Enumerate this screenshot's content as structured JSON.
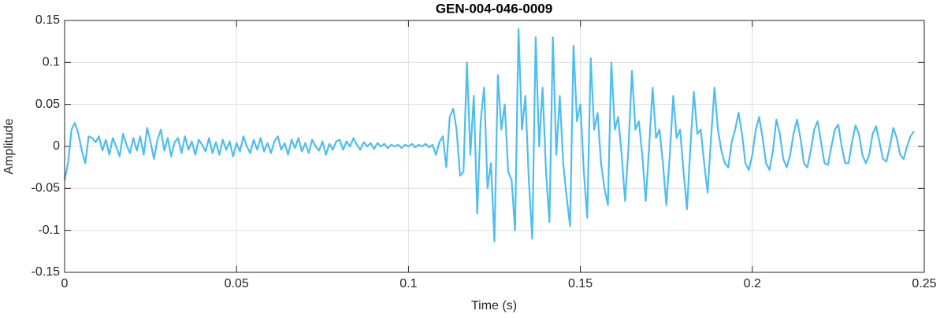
{
  "chart_data": {
    "type": "line",
    "title": "GEN-004-046-0009",
    "xlabel": "Time (s)",
    "ylabel": "Amplitude",
    "color": "#4dbeee",
    "grid": true,
    "xlim": [
      0,
      0.25
    ],
    "ylim": [
      -0.15,
      0.15
    ],
    "xticks": [
      0,
      0.05,
      0.1,
      0.15,
      0.2,
      0.25
    ],
    "yticks": [
      -0.15,
      -0.1,
      -0.05,
      0,
      0.05,
      0.1,
      0.15
    ],
    "x": [
      0,
      0.001,
      0.002,
      0.003,
      0.004,
      0.005,
      0.006,
      0.007,
      0.008,
      0.009,
      0.01,
      0.011,
      0.012,
      0.013,
      0.014,
      0.015,
      0.016,
      0.017,
      0.018,
      0.019,
      0.02,
      0.021,
      0.022,
      0.023,
      0.024,
      0.025,
      0.026,
      0.027,
      0.028,
      0.029,
      0.03,
      0.031,
      0.032,
      0.033,
      0.034,
      0.035,
      0.036,
      0.037,
      0.038,
      0.039,
      0.04,
      0.041,
      0.042,
      0.043,
      0.044,
      0.045,
      0.046,
      0.047,
      0.048,
      0.049,
      0.05,
      0.051,
      0.052,
      0.053,
      0.054,
      0.055,
      0.056,
      0.057,
      0.058,
      0.059,
      0.06,
      0.061,
      0.062,
      0.063,
      0.064,
      0.065,
      0.066,
      0.067,
      0.068,
      0.069,
      0.07,
      0.071,
      0.072,
      0.073,
      0.074,
      0.075,
      0.076,
      0.077,
      0.078,
      0.079,
      0.08,
      0.081,
      0.082,
      0.083,
      0.084,
      0.085,
      0.086,
      0.087,
      0.088,
      0.089,
      0.09,
      0.091,
      0.092,
      0.093,
      0.094,
      0.095,
      0.096,
      0.097,
      0.098,
      0.099,
      0.1,
      0.101,
      0.102,
      0.103,
      0.104,
      0.105,
      0.106,
      0.107,
      0.108,
      0.109,
      0.11,
      0.111,
      0.112,
      0.113,
      0.114,
      0.115,
      0.116,
      0.117,
      0.118,
      0.119,
      0.12,
      0.121,
      0.122,
      0.123,
      0.124,
      0.125,
      0.126,
      0.127,
      0.128,
      0.129,
      0.13,
      0.131,
      0.132,
      0.133,
      0.134,
      0.135,
      0.136,
      0.137,
      0.138,
      0.139,
      0.14,
      0.141,
      0.142,
      0.143,
      0.144,
      0.145,
      0.146,
      0.147,
      0.148,
      0.149,
      0.15,
      0.151,
      0.152,
      0.153,
      0.154,
      0.155,
      0.156,
      0.157,
      0.158,
      0.159,
      0.16,
      0.161,
      0.162,
      0.163,
      0.164,
      0.165,
      0.166,
      0.167,
      0.168,
      0.169,
      0.17,
      0.171,
      0.172,
      0.173,
      0.174,
      0.175,
      0.176,
      0.177,
      0.178,
      0.179,
      0.18,
      0.181,
      0.182,
      0.183,
      0.184,
      0.185,
      0.186,
      0.187,
      0.188,
      0.189,
      0.19,
      0.191,
      0.192,
      0.193,
      0.194,
      0.195,
      0.196,
      0.197,
      0.198,
      0.199,
      0.2,
      0.201,
      0.202,
      0.203,
      0.204,
      0.205,
      0.206,
      0.207,
      0.208,
      0.209,
      0.21,
      0.211,
      0.212,
      0.213,
      0.214,
      0.215,
      0.216,
      0.217,
      0.218,
      0.219,
      0.22,
      0.221,
      0.222,
      0.223,
      0.224,
      0.225,
      0.226,
      0.227,
      0.228,
      0.229,
      0.23,
      0.231,
      0.232,
      0.233,
      0.234,
      0.235,
      0.236,
      0.237,
      0.238,
      0.239,
      0.24,
      0.241,
      0.242,
      0.243,
      0.244,
      0.245,
      0.246,
      0.247
    ],
    "values": [
      -0.04,
      -0.02,
      0.02,
      0.028,
      0.015,
      -0.005,
      -0.02,
      0.012,
      0.01,
      0.005,
      0.012,
      -0.005,
      0.008,
      -0.01,
      0.01,
      0,
      -0.012,
      0.015,
      0.002,
      -0.008,
      0.01,
      -0.005,
      0.012,
      -0.01,
      0.022,
      0.005,
      -0.015,
      0.008,
      0.02,
      -0.005,
      0.01,
      -0.012,
      0.005,
      0.01,
      -0.008,
      0.012,
      -0.004,
      0.006,
      -0.01,
      0.008,
      0.002,
      -0.006,
      0.01,
      -0.008,
      0.005,
      -0.01,
      0.008,
      -0.004,
      0.006,
      -0.012,
      0.004,
      -0.006,
      0.012,
      0,
      -0.008,
      0.008,
      -0.004,
      0.01,
      -0.006,
      0.004,
      -0.008,
      0.006,
      0.012,
      -0.004,
      0.004,
      -0.01,
      0.008,
      -0.002,
      0.01,
      -0.006,
      0.004,
      -0.008,
      0.008,
      0,
      -0.005,
      0.006,
      -0.01,
      0.003,
      -0.004,
      0.006,
      0.008,
      -0.004,
      0.006,
      0,
      0.01,
      0.002,
      -0.004,
      0.005,
      0,
      0.004,
      -0.003,
      0.004,
      0,
      0.003,
      -0.002,
      0.002,
      0,
      0.002,
      -0.002,
      0.002,
      0,
      0.003,
      -0.001,
      0.002,
      0,
      0.003,
      -0.001,
      0.002,
      -0.01,
      0.005,
      0.012,
      -0.025,
      0.035,
      0.045,
      0.02,
      -0.035,
      -0.03,
      0.1,
      -0.01,
      0.06,
      -0.08,
      0.03,
      0.07,
      -0.05,
      -0.02,
      -0.113,
      0.085,
      0.02,
      0.05,
      -0.03,
      -0.04,
      -0.1,
      0.14,
      0.02,
      0.06,
      -0.04,
      -0.11,
      0.13,
      0,
      0.07,
      -0.03,
      -0.09,
      0.13,
      -0.01,
      0.06,
      -0.02,
      -0.06,
      -0.095,
      0.12,
      0.03,
      0.05,
      -0.03,
      -0.085,
      0.105,
      0.02,
      0.04,
      -0.02,
      -0.05,
      -0.07,
      0.1,
      0.02,
      0.035,
      -0.01,
      -0.065,
      0,
      0.09,
      0.02,
      0.03,
      -0.01,
      -0.065,
      0,
      0.07,
      0.01,
      0.02,
      -0.02,
      -0.07,
      -0.01,
      0.06,
      0.01,
      0.02,
      -0.03,
      -0.075,
      0,
      0.065,
      0.015,
      0.02,
      -0.02,
      -0.055,
      0.01,
      0.07,
      0.02,
      -0.005,
      -0.02,
      -0.025,
      0.005,
      0.02,
      0.04,
      0.015,
      -0.02,
      -0.028,
      -0.01,
      0.02,
      0.035,
      0.01,
      -0.02,
      -0.028,
      -0.005,
      0.032,
      0.015,
      -0.015,
      -0.025,
      -0.01,
      0.015,
      0.032,
      0.01,
      -0.02,
      -0.025,
      -0.005,
      0.02,
      0.03,
      0.005,
      -0.02,
      -0.022,
      0,
      0.02,
      0.026,
      0,
      -0.02,
      -0.02,
      0.005,
      0.025,
      0.015,
      -0.01,
      -0.02,
      -0.01,
      0.015,
      0.024,
      0.005,
      -0.015,
      -0.018,
      0,
      0.022,
      0.01,
      -0.01,
      -0.015,
      0,
      0.012,
      0.018
    ]
  }
}
